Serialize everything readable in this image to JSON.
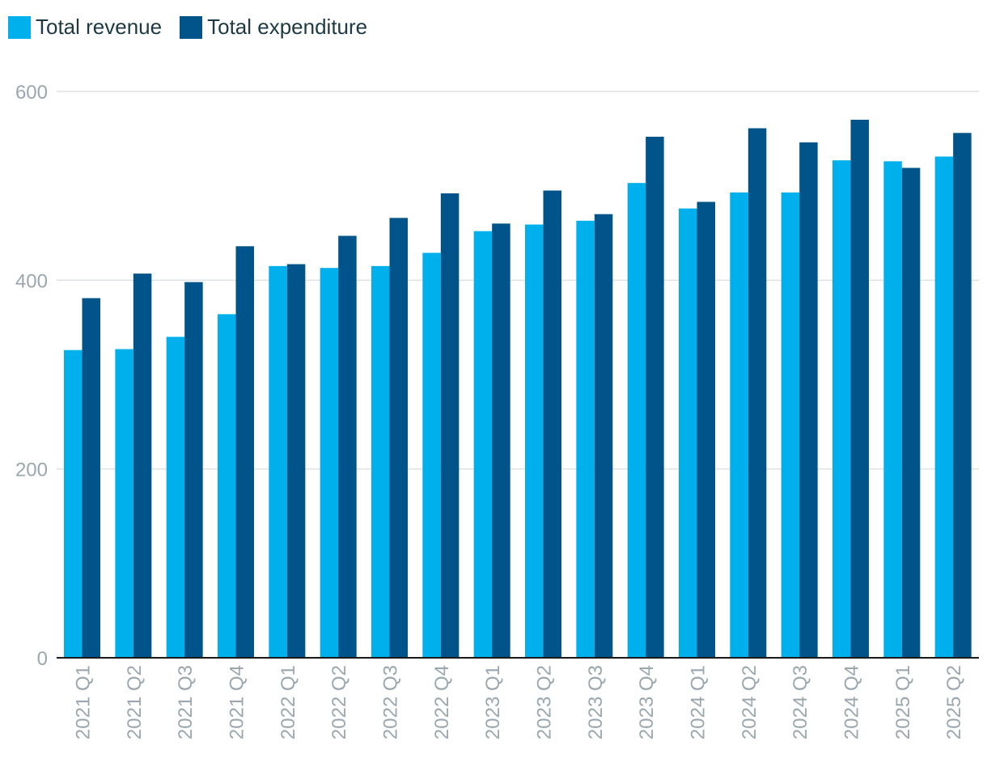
{
  "chart_data": {
    "type": "bar",
    "title": "",
    "xlabel": "",
    "ylabel": "",
    "ylim": [
      0,
      600
    ],
    "yticks": [
      0,
      200,
      400,
      600
    ],
    "grid": true,
    "legend_position": "top-left",
    "categories": [
      "2021 Q1",
      "2021 Q2",
      "2021 Q3",
      "2021 Q4",
      "2022 Q1",
      "2022 Q2",
      "2022 Q3",
      "2022 Q4",
      "2023 Q1",
      "2023 Q2",
      "2023 Q3",
      "2023 Q4",
      "2024 Q1",
      "2024 Q2",
      "2024 Q3",
      "2024 Q4",
      "2025 Q1",
      "2025 Q2"
    ],
    "series": [
      {
        "name": "Total revenue",
        "color": "#00b0ec",
        "values": [
          326,
          327,
          340,
          364,
          415,
          413,
          415,
          429,
          452,
          459,
          463,
          503,
          476,
          493,
          493,
          527,
          526,
          531
        ]
      },
      {
        "name": "Total expenditure",
        "color": "#00548a",
        "values": [
          381,
          407,
          398,
          436,
          417,
          447,
          466,
          492,
          460,
          495,
          470,
          552,
          483,
          561,
          546,
          570,
          519,
          556
        ]
      }
    ]
  }
}
